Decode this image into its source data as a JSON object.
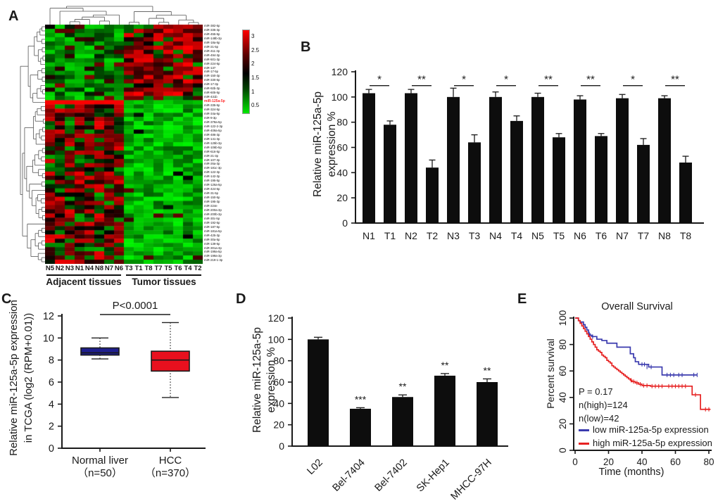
{
  "panels": {
    "a": {
      "label": "A"
    },
    "b": {
      "label": "B"
    },
    "c": {
      "label": "C"
    },
    "d": {
      "label": "D"
    },
    "e": {
      "label": "E"
    }
  },
  "chart_data": [
    {
      "id": "A",
      "type": "heatmap",
      "columns": [
        "N5",
        "N2",
        "N3",
        "N1",
        "N4",
        "N8",
        "N7",
        "N6",
        "T3",
        "T1",
        "T8",
        "T7",
        "T5",
        "T6",
        "T4",
        "T2"
      ],
      "col_groups": [
        {
          "label": "Adjacent tissues",
          "from": 0,
          "to": 8
        },
        {
          "label": "Tumor tissues",
          "from": 8,
          "to": 16
        }
      ],
      "rows": [
        "miR-382-5p",
        "miR-335-3p",
        "miR-455-5p",
        "miR-148b-3p",
        "miR-18a-5p",
        "miR-21-5p",
        "miR-411-3p",
        "miR-494-3p",
        "miR-501-3p",
        "miR-224-5p",
        "miR-137",
        "miR-17-5p",
        "miR-150-3p",
        "miR-330-5p",
        "miR-17-3p",
        "miR-92b-3p",
        "miR-605-5p",
        "miR-431b",
        "miR-125a-5p",
        "miR-335-5p",
        "miR-324-5p",
        "miR-34a-5p",
        "miR-9-3p",
        "miR-378a-5p",
        "miR-122-2-3p",
        "miR-409a-5p",
        "miR-486-3p",
        "miR-141-3p",
        "miR-125b-3p",
        "miR-106b-5p",
        "miR-616-5p",
        "miR-21-3p",
        "miR-107-3p",
        "miR-26a-3p",
        "miR-181c-3p",
        "miR-122-3p",
        "miR-142-3p",
        "miR-195-5p",
        "miR-126a-5p",
        "miR-424-5p",
        "miR-31-5p",
        "miR-150-5p",
        "miR-195-3p",
        "miR-224e",
        "miR-200a-3p",
        "miR-200b-3p",
        "miR-30c-5p",
        "miR-192-5p",
        "miR-187-5p",
        "miR-181a-5p",
        "miR-425-3p",
        "miR-30a-5p",
        "miR-139-5p",
        "miR-301a-3p",
        "miR-199a-5p",
        "miR-199a-3p",
        "miR-219-1-3p"
      ],
      "highlight_row": {
        "index": 18,
        "label": "miR-125a-5p",
        "color": "#ff2a2a"
      },
      "colorbar": {
        "ticks": [
          "3",
          "2.5",
          "2",
          "1.5",
          "1",
          "0.5"
        ]
      },
      "value_range": [
        0,
        3
      ],
      "seed": 20139,
      "pattern": {
        "top_rows": 18,
        "note": "N columns green / T columns red in top cluster; reversed below; highlight row bright red in N, green in T"
      }
    },
    {
      "id": "B",
      "type": "bar",
      "ylabel_lines": [
        "Relative miR-125a-5p",
        "expression %"
      ],
      "categories": [
        "N1",
        "T1",
        "N2",
        "T2",
        "N3",
        "T3",
        "N4",
        "T4",
        "N5",
        "T5",
        "N6",
        "T6",
        "N7",
        "T7",
        "N8",
        "T8"
      ],
      "values": [
        103,
        78,
        103,
        44,
        100,
        64,
        100,
        81,
        100,
        68,
        98,
        69,
        99,
        62,
        99,
        48
      ],
      "errors": [
        3,
        3,
        3,
        6,
        7,
        6,
        4,
        4,
        3,
        3,
        3,
        2,
        3,
        5,
        2,
        5
      ],
      "ylim": [
        0,
        120
      ],
      "yticks": [
        0,
        20,
        40,
        60,
        80,
        100,
        120
      ],
      "sig_pairs": [
        [
          0,
          1,
          "*"
        ],
        [
          2,
          3,
          "**"
        ],
        [
          4,
          5,
          "*"
        ],
        [
          6,
          7,
          "*"
        ],
        [
          8,
          9,
          "**"
        ],
        [
          10,
          11,
          "**"
        ],
        [
          12,
          13,
          "*"
        ],
        [
          14,
          15,
          "**"
        ]
      ],
      "bar_color": "#0d0d0d"
    },
    {
      "id": "C",
      "type": "box",
      "ylabel_lines": [
        "Relative miR-125a-5p expression",
        "in TCGA (log2 (RPM+0.01))"
      ],
      "categories": [
        "Normal liver",
        "HCC"
      ],
      "sub_labels": [
        "（n=50）",
        "（n=370）"
      ],
      "boxes": [
        {
          "lo": 8.1,
          "q1": 8.45,
          "median": 8.65,
          "q3": 9.1,
          "hi": 10.0,
          "color": "#1f1f8e"
        },
        {
          "lo": 4.6,
          "q1": 7.0,
          "median": 8.0,
          "q3": 8.8,
          "hi": 11.4,
          "color": "#e8101e"
        }
      ],
      "ylim": [
        0,
        12
      ],
      "yticks": [
        0,
        2,
        4,
        6,
        8,
        10,
        12
      ],
      "annotation": "P<0.0001"
    },
    {
      "id": "D",
      "type": "bar",
      "ylabel_lines": [
        "Relative miR-125a-5p",
        "expression %"
      ],
      "categories": [
        "L02",
        "Bel-7404",
        "Bel-7402",
        "SK-Hep1",
        "MHCC-97H"
      ],
      "values": [
        100,
        35,
        46,
        66,
        60
      ],
      "errors": [
        2,
        1,
        2,
        2,
        3
      ],
      "sig": [
        "",
        "***",
        "**",
        "**",
        "**"
      ],
      "ylim": [
        0,
        120
      ],
      "yticks": [
        0,
        20,
        40,
        60,
        80,
        100,
        120
      ],
      "bar_color": "#0d0d0d"
    },
    {
      "id": "E",
      "type": "line",
      "title": "Overall Survival",
      "xlabel": "Time (months)",
      "ylabel": "Percent survival",
      "xlim": [
        0,
        80
      ],
      "xticks": [
        0,
        20,
        40,
        60,
        80
      ],
      "ylim": [
        0,
        100
      ],
      "yticks": [
        0,
        20,
        40,
        60,
        80,
        100
      ],
      "stats": [
        "P = 0.17",
        "n(high)=124",
        "n(low)=42"
      ],
      "series": [
        {
          "name": "low miR-125a-5p expression",
          "color": "#3a3aae",
          "steps": [
            [
              0,
              100
            ],
            [
              2,
              98
            ],
            [
              3,
              97
            ],
            [
              5,
              95
            ],
            [
              6,
              93
            ],
            [
              7,
              91
            ],
            [
              8,
              88
            ],
            [
              9,
              87
            ],
            [
              10,
              86
            ],
            [
              13,
              84
            ],
            [
              16,
              83
            ],
            [
              19,
              81
            ],
            [
              25,
              78
            ],
            [
              33,
              73
            ],
            [
              35,
              70
            ],
            [
              36,
              67
            ],
            [
              38,
              65
            ],
            [
              44,
              63
            ],
            [
              52,
              57
            ],
            [
              73,
              57
            ]
          ],
          "censors": [
            [
              8.5,
              88
            ],
            [
              10.5,
              86
            ],
            [
              40,
              65
            ],
            [
              41.5,
              65
            ],
            [
              43,
              63
            ],
            [
              45.5,
              63
            ],
            [
              55,
              57
            ],
            [
              57,
              57
            ],
            [
              59,
              57
            ],
            [
              62,
              57
            ],
            [
              64,
              57
            ],
            [
              71,
              57
            ],
            [
              73,
              57
            ]
          ]
        },
        {
          "name": "high miR-125a-5p expression",
          "color": "#e62222",
          "steps": [
            [
              0,
              100
            ],
            [
              2,
              98
            ],
            [
              3,
              96
            ],
            [
              4,
              94
            ],
            [
              5,
              92
            ],
            [
              6,
              90
            ],
            [
              7,
              88
            ],
            [
              8,
              86
            ],
            [
              9,
              84
            ],
            [
              10,
              82
            ],
            [
              11,
              80
            ],
            [
              12,
              78
            ],
            [
              13,
              76
            ],
            [
              14,
              75
            ],
            [
              15,
              74
            ],
            [
              16,
              72
            ],
            [
              17,
              71
            ],
            [
              18,
              70
            ],
            [
              19,
              68
            ],
            [
              20,
              67
            ],
            [
              21,
              66
            ],
            [
              22,
              64
            ],
            [
              23,
              63
            ],
            [
              24,
              62
            ],
            [
              25,
              61
            ],
            [
              26,
              60
            ],
            [
              27,
              59
            ],
            [
              28,
              58
            ],
            [
              29,
              57
            ],
            [
              30,
              56
            ],
            [
              31,
              55
            ],
            [
              32,
              54
            ],
            [
              33,
              53
            ],
            [
              34,
              52
            ],
            [
              36,
              51
            ],
            [
              38,
              50
            ],
            [
              40,
              49
            ],
            [
              45,
              48.5
            ],
            [
              70,
              42
            ],
            [
              75,
              31
            ],
            [
              81,
              31
            ]
          ],
          "censors": [
            [
              33.5,
              53
            ],
            [
              35,
              52
            ],
            [
              37,
              51
            ],
            [
              39,
              50
            ],
            [
              41,
              49
            ],
            [
              43,
              49
            ],
            [
              46,
              48.5
            ],
            [
              48,
              48.5
            ],
            [
              50,
              48.5
            ],
            [
              52,
              48.5
            ],
            [
              56,
              48.5
            ],
            [
              58,
              48.5
            ],
            [
              60,
              48.5
            ],
            [
              62,
              48.5
            ],
            [
              64,
              48.5
            ],
            [
              66,
              48.5
            ],
            [
              72,
              42
            ],
            [
              78,
              31
            ],
            [
              80,
              31
            ]
          ]
        }
      ]
    }
  ]
}
